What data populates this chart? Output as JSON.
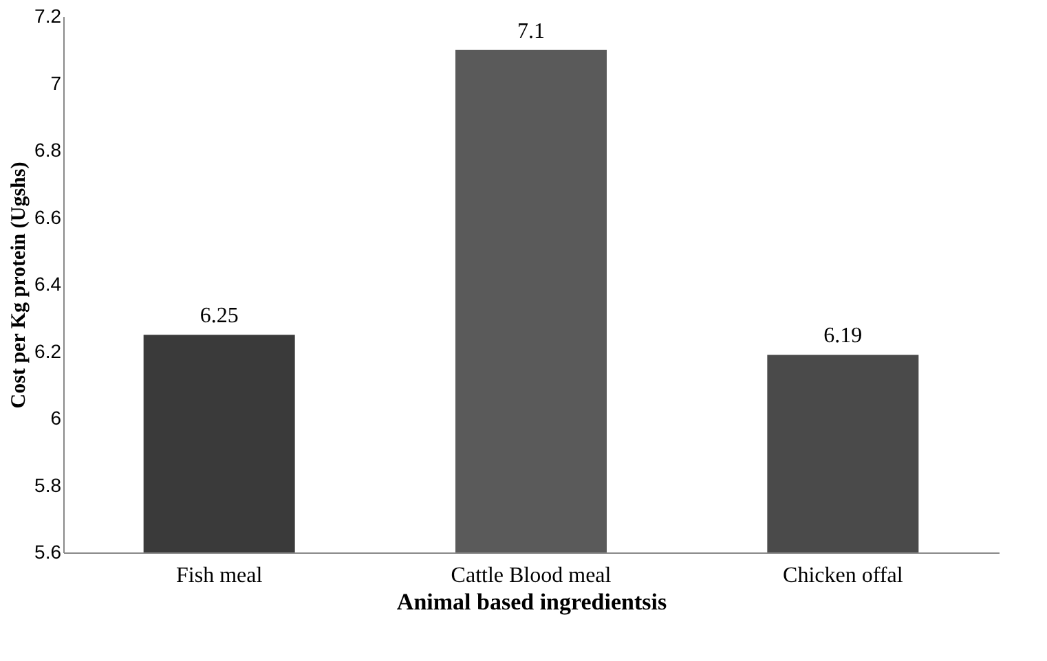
{
  "chart_data": {
    "type": "bar",
    "xlabel": "Animal based ingredientsis",
    "ylabel": "Cost per Kg protein (Ugshs)",
    "categories": [
      "Fish meal",
      "Cattle Blood meal",
      "Chicken offal"
    ],
    "values": [
      6.25,
      7.1,
      6.19
    ],
    "colors": [
      "#3a3a3a",
      "#5a5a5a",
      "#4a4a4a"
    ],
    "ylim": [
      5.6,
      7.2
    ],
    "yticks": [
      5.6,
      5.8,
      6,
      6.2,
      6.4,
      6.6,
      6.8,
      7,
      7.2
    ],
    "grid": false,
    "data_labels": true
  }
}
